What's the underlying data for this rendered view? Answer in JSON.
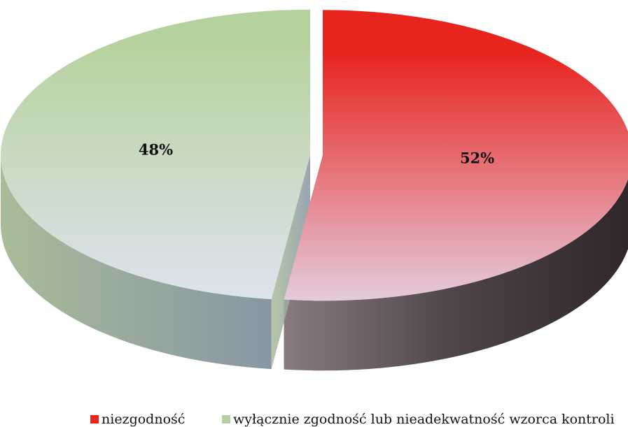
{
  "chart_data": {
    "type": "pie",
    "categories": [
      "niezgodność",
      "wyłącznie zgodność lub nieadekwatność wzorca kontroli"
    ],
    "values": [
      52,
      48
    ],
    "value_labels": [
      "52%",
      "48%"
    ],
    "colors": [
      "#e8241f",
      "#b6d29c"
    ]
  }
}
